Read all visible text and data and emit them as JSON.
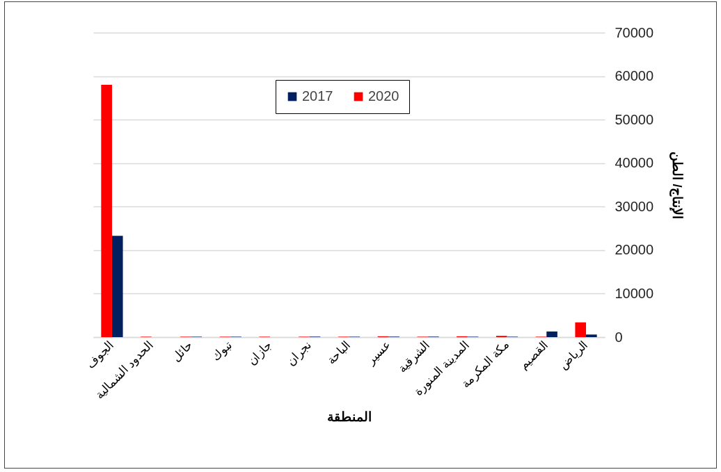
{
  "chart_data": {
    "type": "bar",
    "xlabel": "المنطقة",
    "ylabel": "الإنتاج/ الطن",
    "categories": [
      "الجوف",
      "الحدود الشمالية",
      "حائل",
      "تبوك",
      "جازان",
      "نجران",
      "الباحة",
      "عسير",
      "الشرقية",
      "المدينة المنورة",
      "مكة المكرمة",
      "القصيم",
      "الرياض"
    ],
    "series": [
      {
        "name": "2017",
        "color": "#002060",
        "values": [
          23300,
          0,
          100,
          100,
          0,
          100,
          100,
          100,
          100,
          100,
          100,
          1300,
          600
        ]
      },
      {
        "name": "2020",
        "color": "#ff0000",
        "values": [
          58000,
          100,
          100,
          100,
          100,
          100,
          100,
          200,
          100,
          200,
          300,
          100,
          3400
        ]
      }
    ],
    "ylim": [
      0,
      70000
    ],
    "yticks": [
      0,
      10000,
      20000,
      30000,
      40000,
      50000,
      60000,
      70000
    ],
    "grid": true,
    "legend": "top"
  }
}
